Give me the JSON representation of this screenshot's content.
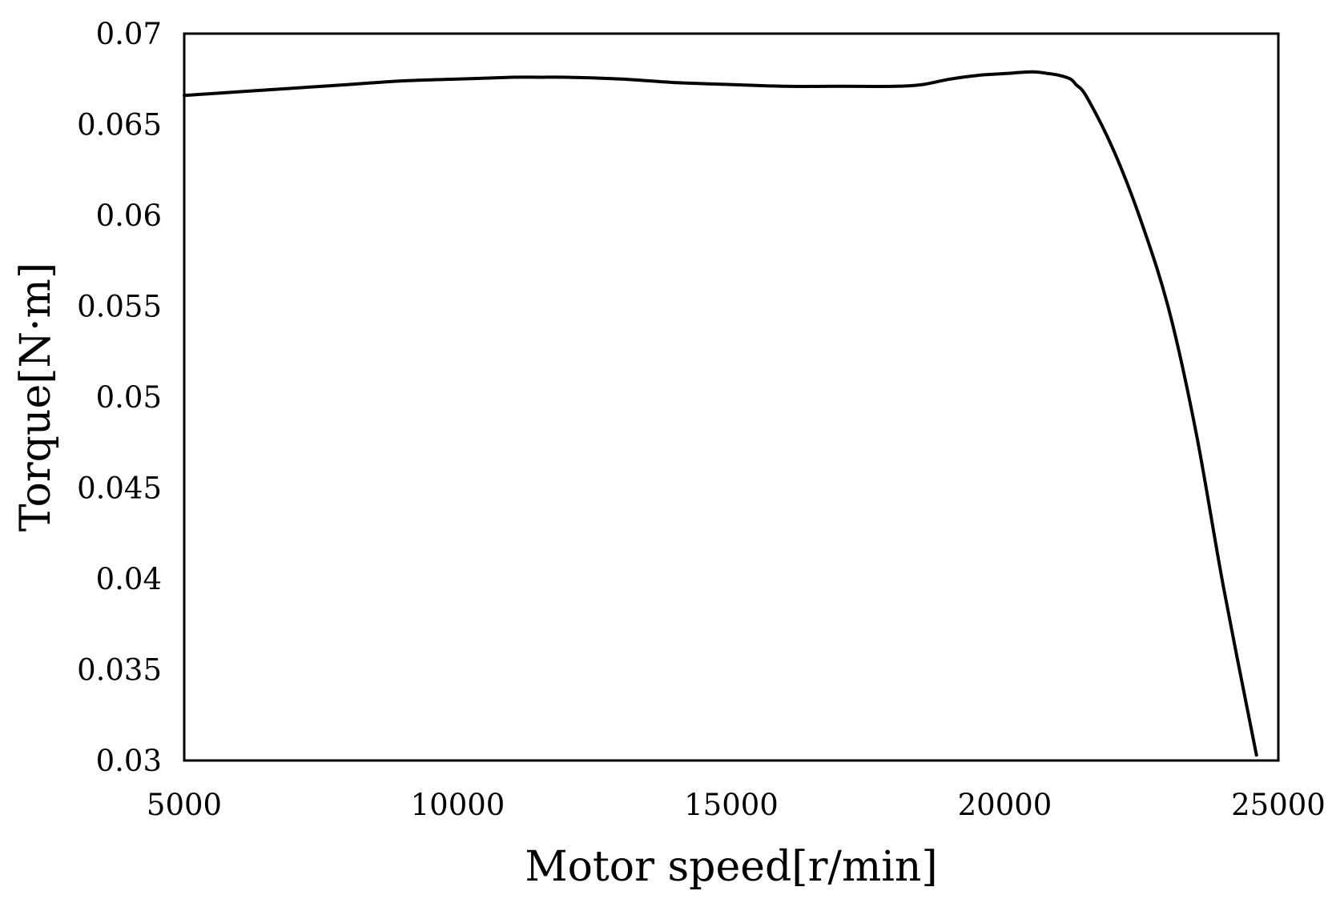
{
  "chart_data": {
    "type": "line",
    "title": "",
    "xlabel": "Motor speed[r/min]",
    "ylabel": "Torque[N·m]",
    "xlim": [
      5000,
      25000
    ],
    "ylim": [
      0.03,
      0.07
    ],
    "x_ticks": [
      "5000",
      "10000",
      "15000",
      "20000",
      "25000"
    ],
    "y_ticks": [
      "0.03",
      "0.035",
      "0.04",
      "0.045",
      "0.05",
      "0.055",
      "0.06",
      "0.065",
      "0.07"
    ],
    "grid": false,
    "legend": "none",
    "line_color": "#000000",
    "series": [
      {
        "x": [
          5000,
          6000,
          7000,
          8000,
          9000,
          10000,
          11000,
          11500,
          12000,
          13000,
          14000,
          15000,
          16000,
          17000,
          18000,
          18500,
          19000,
          19500,
          20000,
          20500,
          20800,
          21000,
          21200,
          21300,
          21500,
          22000,
          22500,
          23000,
          23500,
          24000,
          24600
        ],
        "y": [
          0.0666,
          0.0668,
          0.067,
          0.0672,
          0.0674,
          0.0675,
          0.0676,
          0.0676,
          0.0676,
          0.0675,
          0.0673,
          0.0672,
          0.0671,
          0.0671,
          0.0671,
          0.0672,
          0.0675,
          0.0677,
          0.0678,
          0.0679,
          0.0678,
          0.0677,
          0.0675,
          0.0672,
          0.0665,
          0.0635,
          0.0596,
          0.0548,
          0.048,
          0.0395,
          0.0303
        ]
      }
    ]
  }
}
